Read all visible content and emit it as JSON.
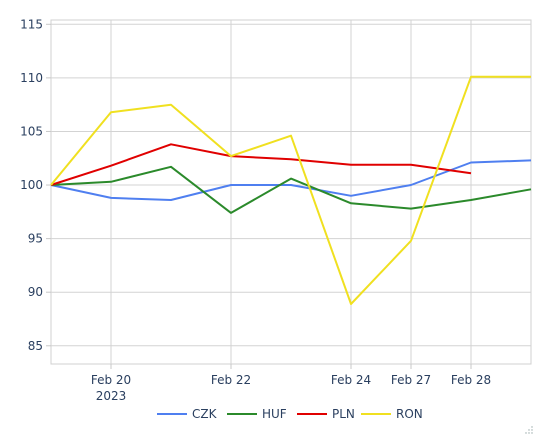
{
  "chart_data": {
    "type": "line",
    "title": "",
    "xlabel": "",
    "ylabel": "",
    "x": [
      0,
      1,
      2,
      3,
      4,
      5,
      6,
      7,
      8
    ],
    "x_tick_labels": [
      {
        "x": 1,
        "line1": "Feb 20",
        "line2": "2023"
      },
      {
        "x": 3,
        "line1": "Feb 22",
        "line2": ""
      },
      {
        "x": 5,
        "line1": "Feb 24",
        "line2": ""
      },
      {
        "x": 6,
        "line1": "Feb 27",
        "line2": ""
      },
      {
        "x": 7,
        "line1": "Feb 28",
        "line2": ""
      }
    ],
    "xlim": [
      0,
      8
    ],
    "ylim": [
      83.3,
      115.4
    ],
    "y_ticks": [
      85,
      90,
      95,
      100,
      105,
      110,
      115
    ],
    "grid": true,
    "legend_position": "bottom",
    "series": [
      {
        "name": "CZK",
        "color": "#4f7ff0",
        "values": [
          100,
          98.8,
          98.6,
          100.0,
          100.0,
          99.0,
          100.0,
          102.1,
          102.3
        ]
      },
      {
        "name": "HUF",
        "color": "#2b8a2b",
        "values": [
          100,
          100.3,
          101.7,
          97.4,
          100.6,
          98.3,
          97.8,
          98.6,
          99.6
        ]
      },
      {
        "name": "PLN",
        "color": "#e00000",
        "values": [
          100,
          101.8,
          103.8,
          102.7,
          102.4,
          101.9,
          101.9,
          101.1,
          null
        ]
      },
      {
        "name": "RON",
        "color": "#f0e020",
        "values": [
          100,
          106.8,
          107.5,
          102.7,
          104.6,
          88.9,
          94.8,
          110.1,
          110.1
        ]
      }
    ]
  }
}
